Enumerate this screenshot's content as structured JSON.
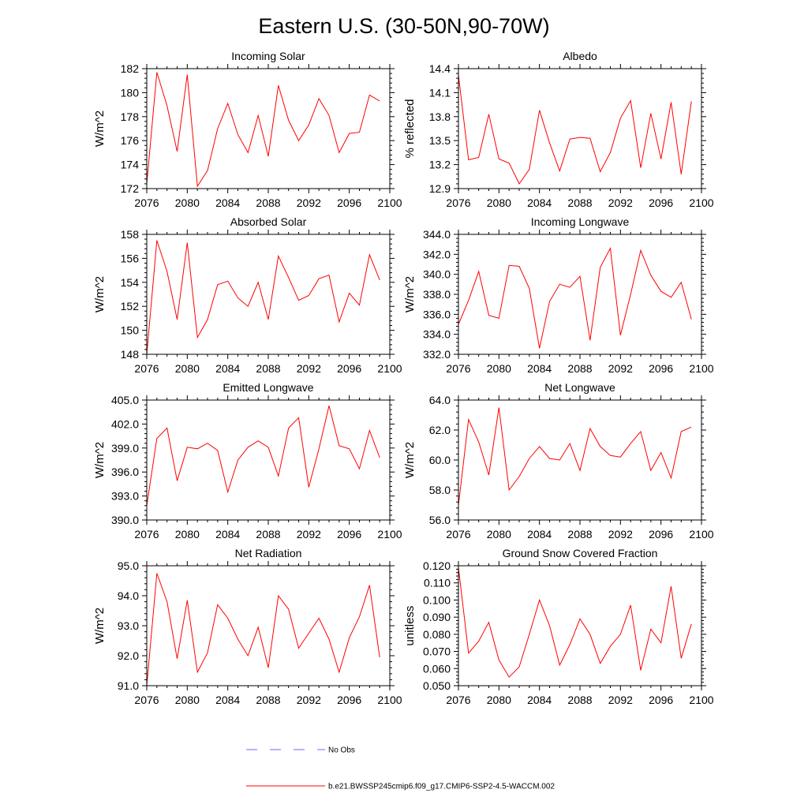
{
  "title": "Eastern U.S. (30-50N,90-70W)",
  "legend": {
    "placement": "bottom-center",
    "entries": [
      {
        "label": "No Obs",
        "color": "#6b6bff",
        "style": "dashed"
      },
      {
        "label": "b.e21.BWSSP245cmip6.f09_g17.CMIP6-SSP2-4.5-WACCM.002",
        "color": "#ff0000",
        "style": "solid"
      }
    ]
  },
  "chart_data": [
    {
      "type": "line",
      "title": "Incoming Solar",
      "xlabel": "",
      "ylabel": "W/m^2",
      "xlim": [
        2076,
        2100
      ],
      "ylim": [
        172,
        182
      ],
      "xticks": [
        2076,
        2080,
        2084,
        2088,
        2092,
        2096,
        2100
      ],
      "yticks": [
        172,
        174,
        176,
        178,
        180,
        182
      ],
      "ytick_labels": [
        "172",
        "174",
        "176",
        "178",
        "180",
        "182"
      ],
      "grid": false,
      "x": [
        2076,
        2077,
        2078,
        2079,
        2080,
        2081,
        2082,
        2083,
        2084,
        2085,
        2086,
        2087,
        2088,
        2089,
        2090,
        2091,
        2092,
        2093,
        2094,
        2095,
        2096,
        2097,
        2098,
        2099
      ],
      "series": [
        {
          "color": "#ff0000",
          "values": [
            172.4,
            181.7,
            178.9,
            175.1,
            181.5,
            172.2,
            173.5,
            177.0,
            179.1,
            176.5,
            175.0,
            178.1,
            174.7,
            180.6,
            177.7,
            176.0,
            177.3,
            179.5,
            178.1,
            175.0,
            176.6,
            176.7,
            179.8,
            179.3
          ]
        }
      ]
    },
    {
      "type": "line",
      "title": "Albedo",
      "xlabel": "",
      "ylabel": "% reflected",
      "xlim": [
        2076,
        2100
      ],
      "ylim": [
        12.9,
        14.4
      ],
      "xticks": [
        2076,
        2080,
        2084,
        2088,
        2092,
        2096,
        2100
      ],
      "yticks": [
        12.9,
        13.2,
        13.5,
        13.8,
        14.1,
        14.4
      ],
      "ytick_labels": [
        "12.9",
        "13.2",
        "13.5",
        "13.8",
        "14.1",
        "14.4"
      ],
      "grid": false,
      "x": [
        2076,
        2077,
        2078,
        2079,
        2080,
        2081,
        2082,
        2083,
        2084,
        2085,
        2086,
        2087,
        2088,
        2089,
        2090,
        2091,
        2092,
        2093,
        2094,
        2095,
        2096,
        2097,
        2098,
        2099
      ],
      "series": [
        {
          "color": "#ff0000",
          "values": [
            14.32,
            13.26,
            13.29,
            13.83,
            13.27,
            13.22,
            12.96,
            13.14,
            13.88,
            13.47,
            13.12,
            13.52,
            13.54,
            13.53,
            13.11,
            13.35,
            13.78,
            14.0,
            13.16,
            13.84,
            13.27,
            13.98,
            13.08,
            13.99
          ]
        }
      ]
    },
    {
      "type": "line",
      "title": "Absorbed Solar",
      "xlabel": "",
      "ylabel": "W/m^2",
      "xlim": [
        2076,
        2100
      ],
      "ylim": [
        148,
        158
      ],
      "xticks": [
        2076,
        2080,
        2084,
        2088,
        2092,
        2096,
        2100
      ],
      "yticks": [
        148,
        150,
        152,
        154,
        156,
        158
      ],
      "ytick_labels": [
        "148",
        "150",
        "152",
        "154",
        "156",
        "158"
      ],
      "grid": false,
      "x": [
        2076,
        2077,
        2078,
        2079,
        2080,
        2081,
        2082,
        2083,
        2084,
        2085,
        2086,
        2087,
        2088,
        2089,
        2090,
        2091,
        2092,
        2093,
        2094,
        2095,
        2096,
        2097,
        2098,
        2099
      ],
      "series": [
        {
          "color": "#ff0000",
          "values": [
            148.0,
            157.5,
            154.9,
            150.9,
            157.3,
            149.4,
            150.9,
            153.8,
            154.1,
            152.7,
            152.0,
            154.0,
            150.9,
            156.2,
            154.4,
            152.5,
            152.9,
            154.3,
            154.6,
            150.7,
            153.1,
            152.1,
            156.3,
            154.2
          ]
        }
      ]
    },
    {
      "type": "line",
      "title": "Incoming Longwave",
      "xlabel": "",
      "ylabel": "W/m^2",
      "xlim": [
        2076,
        2100
      ],
      "ylim": [
        332,
        344
      ],
      "xticks": [
        2076,
        2080,
        2084,
        2088,
        2092,
        2096,
        2100
      ],
      "yticks": [
        332,
        334,
        336,
        338,
        340,
        342,
        344
      ],
      "ytick_labels": [
        "332.0",
        "334.0",
        "336.0",
        "338.0",
        "340.0",
        "342.0",
        "344.0"
      ],
      "grid": false,
      "x": [
        2076,
        2077,
        2078,
        2079,
        2080,
        2081,
        2082,
        2083,
        2084,
        2085,
        2086,
        2087,
        2088,
        2089,
        2090,
        2091,
        2092,
        2093,
        2094,
        2095,
        2096,
        2097,
        2098,
        2099
      ],
      "series": [
        {
          "color": "#ff0000",
          "values": [
            335.0,
            337.4,
            340.3,
            335.9,
            335.6,
            340.9,
            340.8,
            338.6,
            332.6,
            337.3,
            339.0,
            338.7,
            339.8,
            333.4,
            340.7,
            342.6,
            333.9,
            338.0,
            342.4,
            339.9,
            338.3,
            337.7,
            339.2,
            335.5
          ]
        }
      ]
    },
    {
      "type": "line",
      "title": "Emitted Longwave",
      "xlabel": "",
      "ylabel": "W/m^2",
      "xlim": [
        2076,
        2100
      ],
      "ylim": [
        390,
        405
      ],
      "xticks": [
        2076,
        2080,
        2084,
        2088,
        2092,
        2096,
        2100
      ],
      "yticks": [
        390,
        393,
        396,
        399,
        402,
        405
      ],
      "ytick_labels": [
        "390.0",
        "393.0",
        "396.0",
        "399.0",
        "402.0",
        "405.0"
      ],
      "grid": false,
      "x": [
        2076,
        2077,
        2078,
        2079,
        2080,
        2081,
        2082,
        2083,
        2084,
        2085,
        2086,
        2087,
        2088,
        2089,
        2090,
        2091,
        2092,
        2093,
        2094,
        2095,
        2096,
        2097,
        2098,
        2099
      ],
      "series": [
        {
          "color": "#ff0000",
          "values": [
            391.8,
            400.2,
            401.5,
            394.9,
            399.1,
            398.9,
            399.6,
            398.7,
            393.5,
            397.5,
            399.1,
            399.9,
            399.1,
            395.5,
            401.5,
            402.8,
            394.1,
            398.9,
            404.3,
            399.3,
            398.9,
            396.4,
            401.2,
            397.8
          ]
        }
      ]
    },
    {
      "type": "line",
      "title": "Net Longwave",
      "xlabel": "",
      "ylabel": "W/m^2",
      "xlim": [
        2076,
        2100
      ],
      "ylim": [
        56,
        64
      ],
      "xticks": [
        2076,
        2080,
        2084,
        2088,
        2092,
        2096,
        2100
      ],
      "yticks": [
        56,
        58,
        60,
        62,
        64
      ],
      "ytick_labels": [
        "56.0",
        "58.0",
        "60.0",
        "62.0",
        "64.0"
      ],
      "grid": false,
      "x": [
        2076,
        2077,
        2078,
        2079,
        2080,
        2081,
        2082,
        2083,
        2084,
        2085,
        2086,
        2087,
        2088,
        2089,
        2090,
        2091,
        2092,
        2093,
        2094,
        2095,
        2096,
        2097,
        2098,
        2099
      ],
      "series": [
        {
          "color": "#ff0000",
          "values": [
            57.0,
            62.7,
            61.2,
            59.0,
            63.5,
            58.0,
            58.9,
            60.1,
            60.9,
            60.1,
            60.0,
            61.1,
            59.3,
            62.1,
            60.9,
            60.3,
            60.2,
            61.1,
            61.9,
            59.3,
            60.5,
            58.8,
            61.9,
            62.2
          ]
        }
      ]
    },
    {
      "type": "line",
      "title": "Net Radiation",
      "xlabel": "",
      "ylabel": "W/m^2",
      "xlim": [
        2076,
        2100
      ],
      "ylim": [
        91,
        95
      ],
      "xticks": [
        2076,
        2080,
        2084,
        2088,
        2092,
        2096,
        2100
      ],
      "yticks": [
        91,
        92,
        93,
        94,
        95
      ],
      "ytick_labels": [
        "91.0",
        "92.0",
        "93.0",
        "94.0",
        "95.0"
      ],
      "grid": false,
      "x": [
        2076,
        2077,
        2078,
        2079,
        2080,
        2081,
        2082,
        2083,
        2084,
        2085,
        2086,
        2087,
        2088,
        2089,
        2090,
        2091,
        2092,
        2093,
        2094,
        2095,
        2096,
        2097,
        2098,
        2099
      ],
      "series": [
        {
          "color": "#ff0000",
          "values": [
            91.0,
            94.75,
            93.8,
            91.9,
            93.85,
            91.45,
            92.1,
            93.7,
            93.25,
            92.55,
            92.0,
            92.95,
            91.6,
            94.0,
            93.55,
            92.25,
            92.75,
            93.25,
            92.55,
            91.45,
            92.6,
            93.3,
            94.35,
            91.95
          ]
        }
      ]
    },
    {
      "type": "line",
      "title": "Ground Snow Covered Fraction",
      "xlabel": "",
      "ylabel": "unitless",
      "xlim": [
        2076,
        2100
      ],
      "ylim": [
        0.05,
        0.12
      ],
      "xticks": [
        2076,
        2080,
        2084,
        2088,
        2092,
        2096,
        2100
      ],
      "yticks": [
        0.05,
        0.06,
        0.07,
        0.08,
        0.09,
        0.1,
        0.11,
        0.12
      ],
      "ytick_labels": [
        "0.050",
        "0.060",
        "0.070",
        "0.080",
        "0.090",
        "0.100",
        "0.110",
        "0.120"
      ],
      "grid": false,
      "x": [
        2076,
        2077,
        2078,
        2079,
        2080,
        2081,
        2082,
        2083,
        2084,
        2085,
        2086,
        2087,
        2088,
        2089,
        2090,
        2091,
        2092,
        2093,
        2094,
        2095,
        2096,
        2097,
        2098,
        2099
      ],
      "series": [
        {
          "color": "#ff0000",
          "values": [
            0.119,
            0.069,
            0.076,
            0.087,
            0.065,
            0.055,
            0.061,
            0.08,
            0.1,
            0.085,
            0.062,
            0.074,
            0.089,
            0.08,
            0.063,
            0.073,
            0.08,
            0.097,
            0.059,
            0.083,
            0.075,
            0.108,
            0.066,
            0.086
          ]
        }
      ]
    }
  ]
}
